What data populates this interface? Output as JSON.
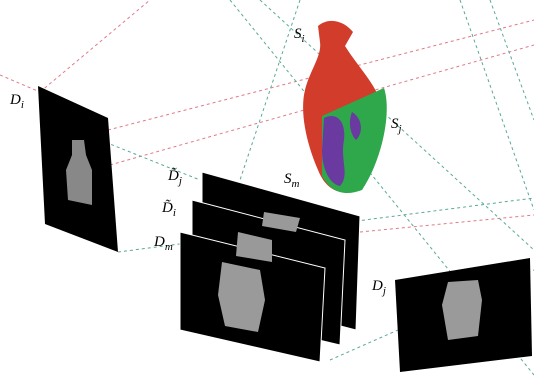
{
  "labels": [
    {
      "letter": "S",
      "subscript": "i"
    },
    {
      "letter": "S",
      "subscript": "j"
    },
    {
      "letter": "S",
      "subscript": "m"
    },
    {
      "letter": "D",
      "subscript": "i"
    },
    {
      "letter": "D̃",
      "subscript": "j"
    },
    {
      "letter": "D̃",
      "subscript": "i"
    },
    {
      "letter": "D",
      "subscript": "m"
    },
    {
      "letter": "D",
      "subscript": "j"
    }
  ]
}
